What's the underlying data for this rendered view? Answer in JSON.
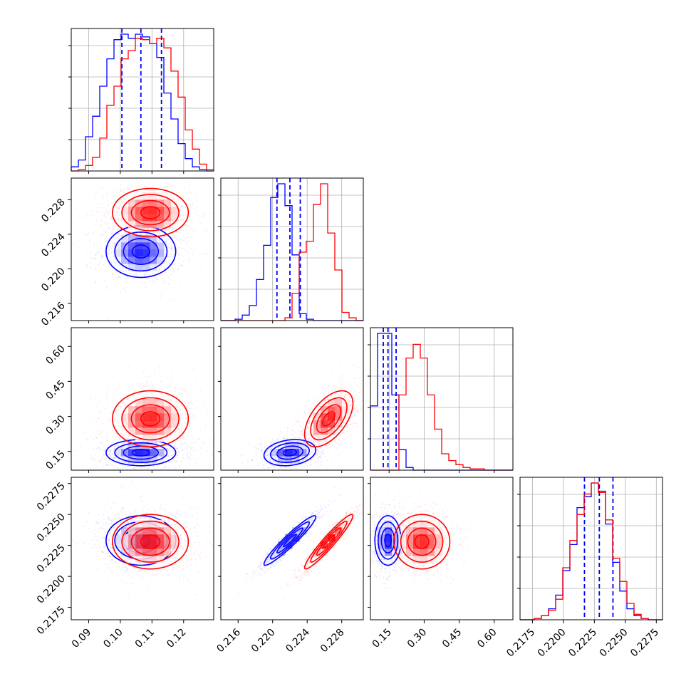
{
  "colors": {
    "red": "#ff0000",
    "blue": "#0000ff",
    "grid": "#b0b0b0",
    "frame": "#000000"
  },
  "params": [
    {
      "range": [
        0.0845,
        0.1295
      ],
      "ticks": [
        0.09,
        0.1,
        0.11,
        0.12
      ],
      "tick_labels": [
        "0.09",
        "0.10",
        "0.11",
        "0.12"
      ]
    },
    {
      "range": [
        0.214,
        0.2305
      ],
      "ticks": [
        0.216,
        0.22,
        0.224,
        0.228
      ],
      "tick_labels": [
        "0.216",
        "0.220",
        "0.224",
        "0.228"
      ]
    },
    {
      "range": [
        0.07,
        0.68
      ],
      "ticks": [
        0.15,
        0.3,
        0.45,
        0.6
      ],
      "tick_labels": [
        "0.15",
        "0.30",
        "0.45",
        "0.60"
      ]
    },
    {
      "range": [
        0.2165,
        0.228
      ],
      "ticks": [
        0.2175,
        0.22,
        0.2225,
        0.225,
        0.2275
      ],
      "tick_labels": [
        "0.2175",
        "0.2200",
        "0.2225",
        "0.2250",
        "0.2275"
      ]
    }
  ],
  "chart_data": {
    "type": "corner",
    "series": [
      {
        "name": "",
        "color": "#0000ff",
        "means": [
          0.1065,
          0.222,
          0.145,
          0.2229
        ],
        "sigmas": [
          0.0055,
          0.0015,
          0.028,
          0.001
        ],
        "quantiles": [
          [
            0.1005,
            0.1065,
            0.113
          ],
          [
            0.2205,
            0.222,
            0.2232
          ],
          [
            0.125,
            0.145,
            0.18
          ],
          [
            0.2217,
            0.2229,
            0.224
          ]
        ],
        "correlations": {
          "0-1": 0.0,
          "0-2": 0.0,
          "0-3": 0.0,
          "1-2": 0.2,
          "1-3": 0.95,
          "2-3": 0.0
        },
        "hist": [
          {
            "edges": [
              0.0845,
              0.0915
            ],
            "counts": [
              0.03,
              0.08,
              0.25,
              0.4,
              0.62,
              0.82,
              0.96,
              1.0,
              0.97,
              1.0,
              0.98,
              0.93,
              0.83,
              0.57,
              0.38,
              0.2,
              0.09,
              0.03,
              0.01,
              0.0
            ]
          },
          {
            "edges": [
              0.214,
              0.2305
            ],
            "counts": [
              0.0,
              0.0,
              0.01,
              0.04,
              0.11,
              0.3,
              0.55,
              0.9,
              1.0,
              0.84,
              0.48,
              0.05,
              0.01,
              0.0,
              0.0,
              0.0,
              0.0,
              0.0,
              0.0,
              0.0
            ]
          },
          {
            "edges": [
              0.07,
              0.68
            ],
            "counts": [
              0.47,
              1.0,
              1.0,
              0.55,
              0.15,
              0.02,
              0.0,
              0.0,
              0.0,
              0.0,
              0.0,
              0.0,
              0.0,
              0.0,
              0.0,
              0.0,
              0.0,
              0.0,
              0.0,
              0.0
            ]
          },
          {
            "edges": [
              0.2165,
              0.228
            ],
            "counts": [
              0.0,
              0.0,
              0.01,
              0.03,
              0.08,
              0.18,
              0.36,
              0.55,
              0.82,
              0.9,
              1.0,
              0.94,
              0.7,
              0.42,
              0.21,
              0.08,
              0.03,
              0.01,
              0.0,
              0.0
            ]
          }
        ]
      },
      {
        "name": "",
        "color": "#ff0000",
        "means": [
          0.1095,
          0.2265,
          0.29,
          0.2228
        ],
        "sigmas": [
          0.006,
          0.0014,
          0.06,
          0.0011
        ],
        "quantiles": null,
        "correlations": {
          "0-1": 0.0,
          "0-2": 0.0,
          "0-3": 0.0,
          "1-2": 0.55,
          "1-3": 0.95,
          "2-3": 0.0
        },
        "hist": [
          {
            "edges": [
              0.0845,
              0.0915
            ],
            "counts": [
              0.0,
              0.01,
              0.04,
              0.1,
              0.24,
              0.48,
              0.62,
              0.82,
              0.88,
              0.97,
              0.96,
              0.93,
              0.97,
              0.9,
              0.73,
              0.54,
              0.3,
              0.16,
              0.05,
              0.01
            ]
          },
          {
            "edges": [
              0.214,
              0.2305
            ],
            "counts": [
              0.0,
              0.0,
              0.0,
              0.0,
              0.0,
              0.0,
              0.0,
              0.0,
              0.0,
              0.02,
              0.2,
              0.5,
              0.58,
              0.85,
              1.0,
              0.64,
              0.37,
              0.06,
              0.02,
              0.0
            ]
          },
          {
            "edges": [
              0.07,
              0.68
            ],
            "counts": [
              0.0,
              0.0,
              0.0,
              0.0,
              0.55,
              0.82,
              0.92,
              0.82,
              0.55,
              0.3,
              0.12,
              0.07,
              0.04,
              0.02,
              0.01,
              0.01,
              0.0,
              0.0,
              0.0,
              0.0
            ]
          },
          {
            "edges": [
              0.2165,
              0.228
            ],
            "counts": [
              0.0,
              0.0,
              0.01,
              0.03,
              0.07,
              0.15,
              0.38,
              0.58,
              0.77,
              0.92,
              1.0,
              0.93,
              0.73,
              0.45,
              0.28,
              0.12,
              0.04,
              0.01,
              0.0,
              0.0
            ]
          }
        ]
      }
    ],
    "xlabel": "",
    "ylabel": "",
    "grid": true,
    "legend": "none"
  }
}
